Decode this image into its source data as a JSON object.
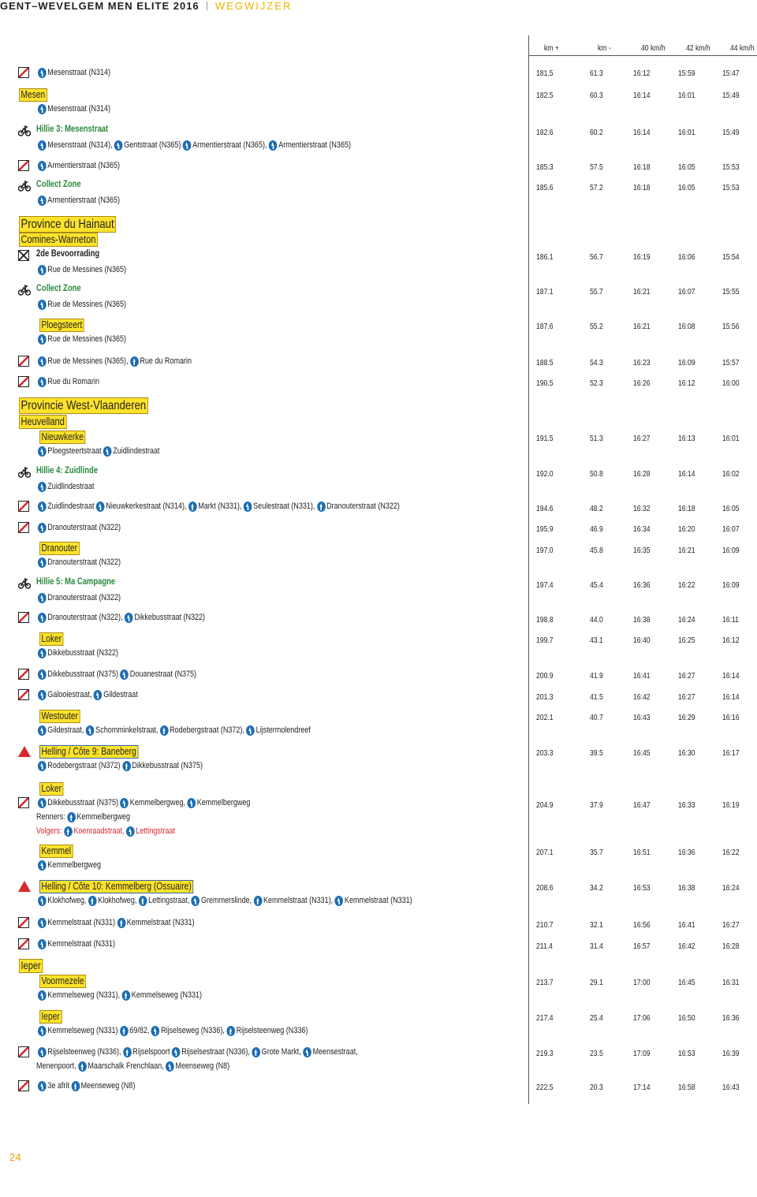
{
  "header": {
    "title": "GENT–WEVELGEM MEN ELITE 2016",
    "section": "WEGWIJZER"
  },
  "columns": [
    "km +",
    "km -",
    "40 km/h",
    "42 km/h",
    "44 km/h"
  ],
  "page_number": "24",
  "regions": [
    [
      "Province du Hainaut",
      "Comines-Warneton"
    ],
    [
      "Provincie West-Vlaanderen",
      "Heuvelland"
    ],
    [
      "Ieper"
    ]
  ],
  "rows": [
    {
      "lines": [
        [
          "Mesenstraat (N314)"
        ]
      ],
      "times": [
        "181.5",
        "61.3",
        "16:12",
        "15:59",
        "15:47"
      ]
    },
    {
      "title": "Mesen",
      "lines": [
        [
          "Mesenstraat (N314)"
        ]
      ],
      "times": [
        "182.5",
        "60.3",
        "16:14",
        "16:01",
        "15:49"
      ]
    },
    {
      "title": "Hillie 3: Mesenstraat",
      "lines": [
        [
          "Mesenstraat (N314),",
          "Gentstraat (N365)",
          "Armentierstraat (N365),",
          "Armentierstraat (N365)"
        ]
      ],
      "times": [
        "182.6",
        "60.2",
        "16:14",
        "16:01",
        "15:49"
      ]
    },
    {
      "lines": [
        [
          "Armentierstraat (N365)"
        ]
      ],
      "times": [
        "185.3",
        "57.5",
        "16:18",
        "16:05",
        "15:53"
      ]
    },
    {
      "title": "Collect Zone",
      "lines": [
        [
          "Armentierstraat (N365)"
        ]
      ],
      "times": [
        "185.6",
        "57.2",
        "16:18",
        "16:05",
        "15:53"
      ]
    },
    {
      "title": "2de Bevoorrading",
      "lines": [
        [
          "Rue de Messines (N365)"
        ]
      ],
      "times": [
        "186.1",
        "56.7",
        "16:19",
        "16:06",
        "15:54"
      ]
    },
    {
      "title": "Collect Zone",
      "lines": [
        [
          "Rue de Messines (N365)"
        ]
      ],
      "times": [
        "187.1",
        "55.7",
        "16:21",
        "16:07",
        "15:55"
      ]
    },
    {
      "title": "Ploegsteert",
      "lines": [
        [
          "Rue de Messines (N365)"
        ]
      ],
      "times": [
        "187.6",
        "55.2",
        "16:21",
        "16:08",
        "15:56"
      ]
    },
    {
      "lines": [
        [
          "Rue de Messines (N365),",
          "Rue du Romarin"
        ]
      ],
      "times": [
        "188.5",
        "54.3",
        "16:23",
        "16:09",
        "15:57"
      ]
    },
    {
      "lines": [
        [
          "Rue du Romarin"
        ]
      ],
      "times": [
        "190.5",
        "52.3",
        "16:26",
        "16:12",
        "16:00"
      ]
    },
    {
      "title": "Nieuwkerke",
      "lines": [
        [
          "Ploegsteertstraat",
          "Zuidlindestraat"
        ]
      ],
      "times": [
        "191.5",
        "51.3",
        "16:27",
        "16:13",
        "16:01"
      ]
    },
    {
      "title": "Hillie 4: Zuidlinde",
      "lines": [
        [
          "Zuidlindestraat"
        ]
      ],
      "times": [
        "192.0",
        "50.8",
        "16:28",
        "16:14",
        "16:02"
      ]
    },
    {
      "lines": [
        [
          "Zuidlindestraat",
          "Nieuwkerkestraat (N314),",
          "Markt (N331),",
          "Seulestraat (N331),",
          "Dranouterstraat (N322)"
        ]
      ],
      "times": [
        "194.6",
        "48.2",
        "16:32",
        "16:18",
        "16:05"
      ]
    },
    {
      "lines": [
        [
          "Dranouterstraat (N322)"
        ]
      ],
      "times": [
        "195.9",
        "46.9",
        "16:34",
        "16:20",
        "16:07"
      ]
    },
    {
      "title": "Dranouter",
      "lines": [
        [
          "Dranouterstraat (N322)"
        ]
      ],
      "times": [
        "197.0",
        "45.8",
        "16:35",
        "16:21",
        "16:09"
      ]
    },
    {
      "title": "Hillie 5: Ma Campagne",
      "lines": [
        [
          "Dranouterstraat (N322)"
        ]
      ],
      "times": [
        "197.4",
        "45.4",
        "16:36",
        "16:22",
        "16:09"
      ]
    },
    {
      "lines": [
        [
          "Dranouterstraat (N322),",
          "Dikkebusstraat (N322)"
        ]
      ],
      "times": [
        "198.8",
        "44.0",
        "16:38",
        "16:24",
        "16:11"
      ]
    },
    {
      "title": "Loker",
      "lines": [
        [
          "Dikkebusstraat (N322)"
        ]
      ],
      "times": [
        "199.7",
        "43.1",
        "16:40",
        "16:25",
        "16:12"
      ]
    },
    {
      "lines": [
        [
          "Dikkebusstraat (N375)",
          "Douanestraat (N375)"
        ]
      ],
      "times": [
        "200.9",
        "41.9",
        "16:41",
        "16:27",
        "16:14"
      ]
    },
    {
      "lines": [
        [
          "Galooiestraat,",
          "Gildestraat"
        ]
      ],
      "times": [
        "201.3",
        "41.5",
        "16:42",
        "16:27",
        "16:14"
      ]
    },
    {
      "title": "Westouter",
      "lines": [
        [
          "Gildestraat,",
          "Schomminkelstraat,",
          "Rodebergstraat (N372),",
          "Lijstermolendreef"
        ]
      ],
      "times": [
        "202.1",
        "40.7",
        "16:43",
        "16:29",
        "16:16"
      ]
    },
    {
      "title": "Helling / Côte 9: Baneberg",
      "lines": [
        [
          "Rodebergstraat (N372)",
          "Dikkebusstraat (N375)"
        ]
      ],
      "times": [
        "203.3",
        "39.5",
        "16:45",
        "16:30",
        "16:17"
      ]
    },
    {
      "title": "Loker",
      "lines": [
        [
          "Dikkebusstraat (N375)",
          "Kemmelbergweg,",
          "Kemmelbergweg"
        ],
        [
          "Renners:",
          "Kemmelbergweg"
        ],
        [
          "Volgers:",
          "Koenraadstraat,",
          "Lettingstraat"
        ]
      ],
      "times": [
        "204.9",
        "37.9",
        "16:47",
        "16:33",
        "16:19"
      ]
    },
    {
      "title": "Kemmel",
      "lines": [
        [
          "Kemmelbergweg"
        ]
      ],
      "times": [
        "207.1",
        "35.7",
        "16:51",
        "16:36",
        "16:22"
      ]
    },
    {
      "title": "Helling / Côte 10: Kemmelberg (Ossuaire)",
      "lines": [
        [
          "Klokhofweg,",
          "Klokhofweg,",
          "Lettingstraat,",
          "Gremmerslinde,",
          "Kemmelstraat (N331),",
          "Kemmelstraat (N331)"
        ]
      ],
      "times": [
        "208.6",
        "34.2",
        "16:53",
        "16:38",
        "16:24"
      ]
    },
    {
      "lines": [
        [
          "Kemmelstraat (N331)",
          "Kemmelstraat (N331)"
        ]
      ],
      "times": [
        "210.7",
        "32.1",
        "16:56",
        "16:41",
        "16:27"
      ]
    },
    {
      "lines": [
        [
          "Kemmelstraat (N331)"
        ]
      ],
      "times": [
        "211.4",
        "31.4",
        "16:57",
        "16:42",
        "16:28"
      ]
    },
    {
      "title": "Voormezele",
      "lines": [
        [
          "Kemmelseweg (N331),",
          "Kemmelseweg (N331)"
        ]
      ],
      "times": [
        "213.7",
        "29.1",
        "17:00",
        "16:45",
        "16:31"
      ]
    },
    {
      "title": "Ieper",
      "lines": [
        [
          "Kemmelseweg (N331)",
          "69/82,",
          "Rijselseweg (N336),",
          "Rijselsteenweg (N336)"
        ]
      ],
      "times": [
        "217.4",
        "25.4",
        "17:06",
        "16:50",
        "16:36"
      ]
    },
    {
      "lines": [
        [
          "Rijselsteenweg (N336),",
          "Rijselspoort",
          "Rijselsestraat (N336),",
          "Grote Markt,",
          "Meensestraat,"
        ],
        [
          "Menenpoort,",
          "Maarschalk Frenchlaan,",
          "Meenseweg (N8)"
        ]
      ],
      "times": [
        "219.3",
        "23.5",
        "17:09",
        "16:53",
        "16:39"
      ]
    },
    {
      "lines": [
        [
          "3e afrit",
          "Meenseweg (N8)"
        ]
      ],
      "times": [
        "222.5",
        "20.3",
        "17:14",
        "16:58",
        "16:43"
      ]
    }
  ]
}
